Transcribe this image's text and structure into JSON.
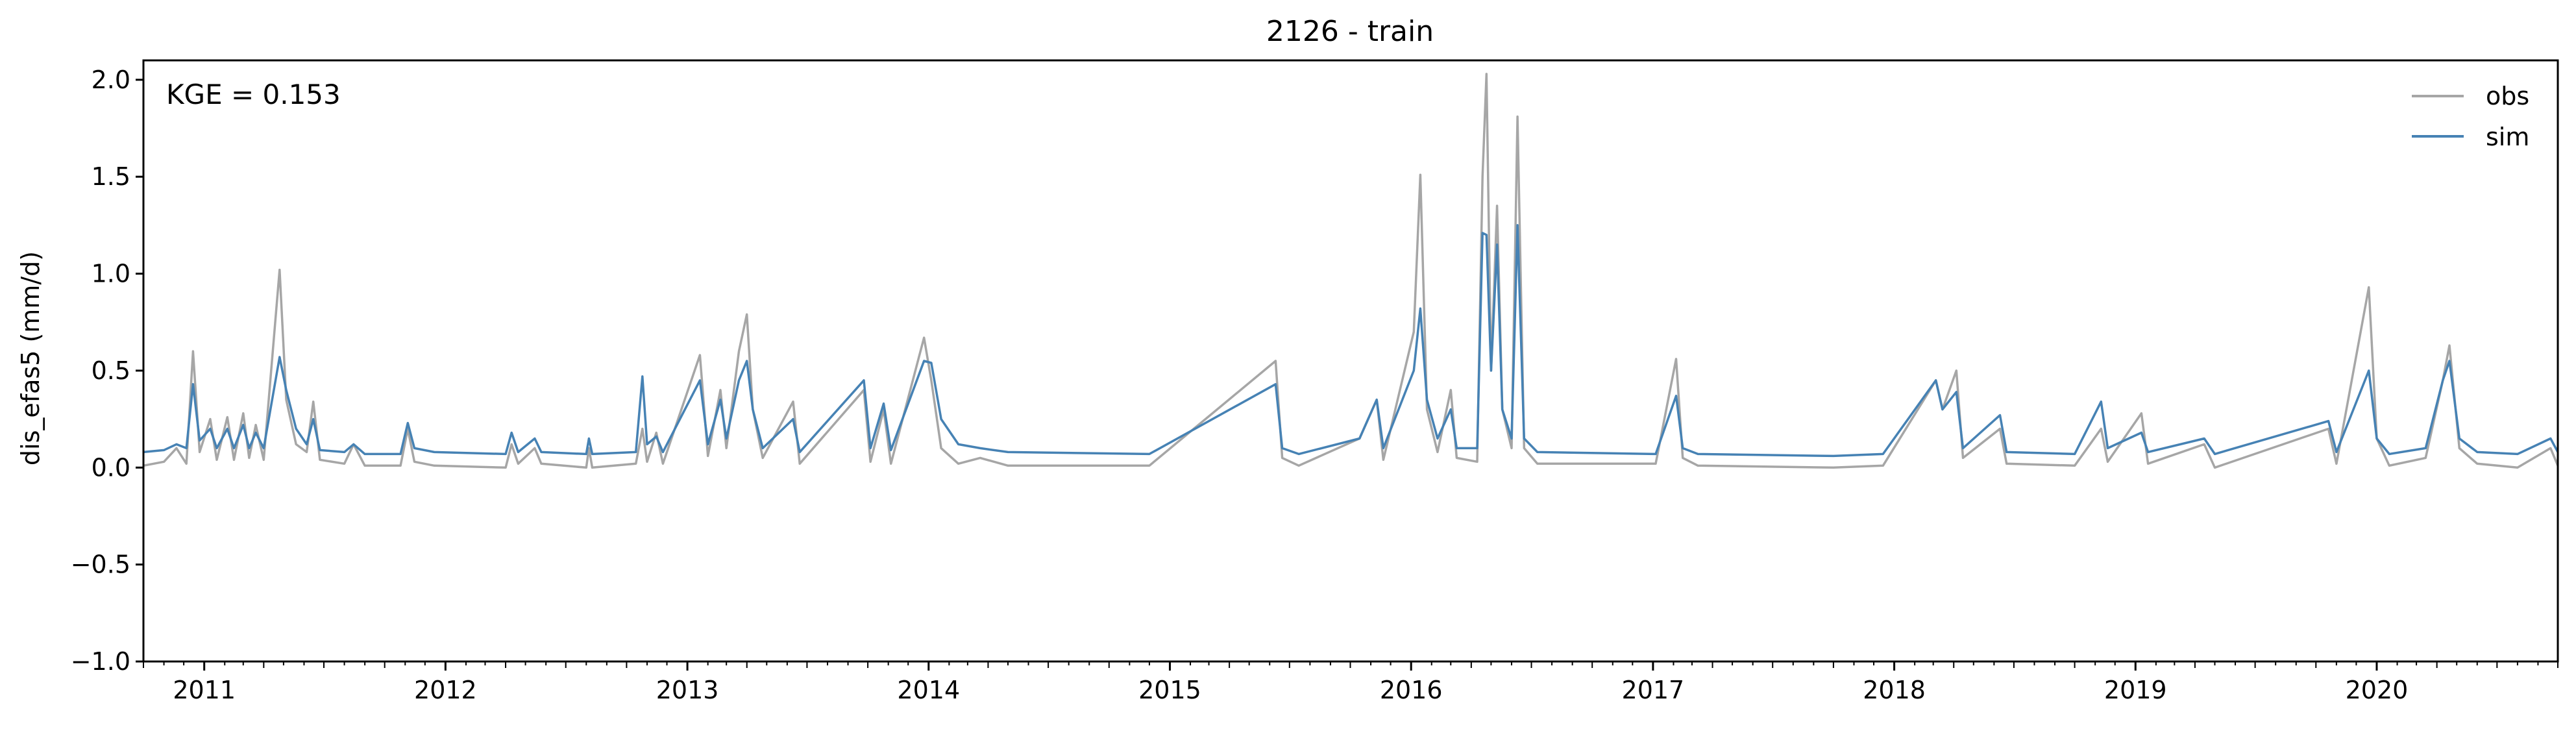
{
  "chart_data": {
    "type": "line",
    "title": "2126 - train",
    "xlabel": "",
    "ylabel": "dis_efas5 (mm/d)",
    "annotation": "KGE = 0.153",
    "xlim": [
      "2010-10-01",
      "2020-10-01"
    ],
    "ylim": [
      -1.0,
      2.1
    ],
    "yticks": [
      -1.0,
      -0.5,
      0.0,
      0.5,
      1.0,
      1.5,
      2.0
    ],
    "ytick_labels": [
      "−1.0",
      "−0.5",
      "0.0",
      "0.5",
      "1.0",
      "1.5",
      "2.0"
    ],
    "xtick_labels": [
      "2011",
      "2012",
      "2013",
      "2014",
      "2015",
      "2016",
      "2017",
      "2018",
      "2019",
      "2020"
    ],
    "grid": false,
    "legend_position": "top-right",
    "series": [
      {
        "name": "obs",
        "color": "#a6a6a6",
        "points": [
          [
            "2010-10-01",
            0.01
          ],
          [
            "2010-11-01",
            0.03
          ],
          [
            "2010-11-20",
            0.1
          ],
          [
            "2010-12-05",
            0.02
          ],
          [
            "2010-12-15",
            0.6
          ],
          [
            "2010-12-25",
            0.08
          ],
          [
            "2011-01-10",
            0.25
          ],
          [
            "2011-01-20",
            0.04
          ],
          [
            "2011-02-05",
            0.26
          ],
          [
            "2011-02-15",
            0.04
          ],
          [
            "2011-03-01",
            0.28
          ],
          [
            "2011-03-10",
            0.05
          ],
          [
            "2011-03-20",
            0.22
          ],
          [
            "2011-04-01",
            0.04
          ],
          [
            "2011-04-25",
            1.02
          ],
          [
            "2011-05-05",
            0.35
          ],
          [
            "2011-05-20",
            0.12
          ],
          [
            "2011-06-05",
            0.08
          ],
          [
            "2011-06-15",
            0.34
          ],
          [
            "2011-06-25",
            0.04
          ],
          [
            "2011-08-01",
            0.02
          ],
          [
            "2011-08-15",
            0.12
          ],
          [
            "2011-09-01",
            0.01
          ],
          [
            "2011-10-25",
            0.01
          ],
          [
            "2011-11-05",
            0.2
          ],
          [
            "2011-11-15",
            0.03
          ],
          [
            "2011-12-15",
            0.01
          ],
          [
            "2012-04-01",
            0.0
          ],
          [
            "2012-04-10",
            0.12
          ],
          [
            "2012-04-20",
            0.02
          ],
          [
            "2012-05-15",
            0.1
          ],
          [
            "2012-05-25",
            0.02
          ],
          [
            "2012-08-01",
            0.0
          ],
          [
            "2012-08-05",
            0.1
          ],
          [
            "2012-08-10",
            0.0
          ],
          [
            "2012-10-15",
            0.02
          ],
          [
            "2012-10-25",
            0.2
          ],
          [
            "2012-11-01",
            0.03
          ],
          [
            "2012-11-15",
            0.18
          ],
          [
            "2012-11-25",
            0.02
          ],
          [
            "2013-01-20",
            0.58
          ],
          [
            "2013-02-01",
            0.06
          ],
          [
            "2013-02-20",
            0.4
          ],
          [
            "2013-03-01",
            0.1
          ],
          [
            "2013-03-20",
            0.6
          ],
          [
            "2013-04-01",
            0.79
          ],
          [
            "2013-04-10",
            0.3
          ],
          [
            "2013-04-25",
            0.05
          ],
          [
            "2013-06-10",
            0.34
          ],
          [
            "2013-06-20",
            0.02
          ],
          [
            "2013-09-25",
            0.4
          ],
          [
            "2013-10-05",
            0.03
          ],
          [
            "2013-10-25",
            0.3
          ],
          [
            "2013-11-05",
            0.02
          ],
          [
            "2013-12-25",
            0.67
          ],
          [
            "2014-01-05",
            0.45
          ],
          [
            "2014-01-20",
            0.1
          ],
          [
            "2014-02-15",
            0.02
          ],
          [
            "2014-03-20",
            0.05
          ],
          [
            "2014-05-01",
            0.01
          ],
          [
            "2014-12-01",
            0.01
          ],
          [
            "2015-06-10",
            0.55
          ],
          [
            "2015-06-20",
            0.05
          ],
          [
            "2015-07-15",
            0.01
          ],
          [
            "2015-10-15",
            0.15
          ],
          [
            "2015-11-10",
            0.35
          ],
          [
            "2015-11-20",
            0.04
          ],
          [
            "2016-01-05",
            0.7
          ],
          [
            "2016-01-15",
            1.51
          ],
          [
            "2016-01-25",
            0.3
          ],
          [
            "2016-02-10",
            0.08
          ],
          [
            "2016-03-01",
            0.4
          ],
          [
            "2016-03-10",
            0.05
          ],
          [
            "2016-04-10",
            0.03
          ],
          [
            "2016-04-18",
            1.5
          ],
          [
            "2016-04-24",
            2.03
          ],
          [
            "2016-05-01",
            0.5
          ],
          [
            "2016-05-10",
            1.35
          ],
          [
            "2016-05-18",
            0.3
          ],
          [
            "2016-06-01",
            0.1
          ],
          [
            "2016-06-10",
            1.81
          ],
          [
            "2016-06-20",
            0.1
          ],
          [
            "2016-07-10",
            0.02
          ],
          [
            "2017-01-05",
            0.02
          ],
          [
            "2017-02-05",
            0.56
          ],
          [
            "2017-02-15",
            0.05
          ],
          [
            "2017-03-10",
            0.01
          ],
          [
            "2017-10-01",
            0.0
          ],
          [
            "2017-12-15",
            0.01
          ],
          [
            "2018-03-05",
            0.45
          ],
          [
            "2018-03-15",
            0.3
          ],
          [
            "2018-04-05",
            0.5
          ],
          [
            "2018-04-15",
            0.05
          ],
          [
            "2018-06-10",
            0.2
          ],
          [
            "2018-06-20",
            0.02
          ],
          [
            "2018-10-01",
            0.01
          ],
          [
            "2018-11-10",
            0.2
          ],
          [
            "2018-11-20",
            0.03
          ],
          [
            "2019-01-10",
            0.28
          ],
          [
            "2019-01-20",
            0.02
          ],
          [
            "2019-04-15",
            0.12
          ],
          [
            "2019-05-01",
            0.0
          ],
          [
            "2019-10-20",
            0.2
          ],
          [
            "2019-11-01",
            0.02
          ],
          [
            "2019-12-20",
            0.93
          ],
          [
            "2020-01-01",
            0.15
          ],
          [
            "2020-01-20",
            0.01
          ],
          [
            "2020-03-15",
            0.05
          ],
          [
            "2020-04-10",
            0.45
          ],
          [
            "2020-04-20",
            0.63
          ],
          [
            "2020-05-05",
            0.1
          ],
          [
            "2020-06-01",
            0.02
          ],
          [
            "2020-08-01",
            0.0
          ],
          [
            "2020-09-20",
            0.1
          ],
          [
            "2020-10-01",
            0.01
          ]
        ]
      },
      {
        "name": "sim",
        "color": "#4682b4",
        "points": [
          [
            "2010-10-01",
            0.08
          ],
          [
            "2010-11-01",
            0.09
          ],
          [
            "2010-11-20",
            0.12
          ],
          [
            "2010-12-05",
            0.1
          ],
          [
            "2010-12-15",
            0.43
          ],
          [
            "2010-12-25",
            0.14
          ],
          [
            "2011-01-10",
            0.2
          ],
          [
            "2011-01-20",
            0.1
          ],
          [
            "2011-02-05",
            0.2
          ],
          [
            "2011-02-15",
            0.1
          ],
          [
            "2011-03-01",
            0.22
          ],
          [
            "2011-03-10",
            0.1
          ],
          [
            "2011-03-20",
            0.18
          ],
          [
            "2011-04-01",
            0.1
          ],
          [
            "2011-04-25",
            0.57
          ],
          [
            "2011-05-05",
            0.4
          ],
          [
            "2011-05-20",
            0.2
          ],
          [
            "2011-06-05",
            0.12
          ],
          [
            "2011-06-15",
            0.25
          ],
          [
            "2011-06-25",
            0.09
          ],
          [
            "2011-08-01",
            0.08
          ],
          [
            "2011-08-15",
            0.12
          ],
          [
            "2011-09-01",
            0.07
          ],
          [
            "2011-10-25",
            0.07
          ],
          [
            "2011-11-05",
            0.23
          ],
          [
            "2011-11-15",
            0.1
          ],
          [
            "2011-12-15",
            0.08
          ],
          [
            "2012-04-01",
            0.07
          ],
          [
            "2012-04-10",
            0.18
          ],
          [
            "2012-04-20",
            0.08
          ],
          [
            "2012-05-15",
            0.15
          ],
          [
            "2012-05-25",
            0.08
          ],
          [
            "2012-08-01",
            0.07
          ],
          [
            "2012-08-05",
            0.15
          ],
          [
            "2012-08-10",
            0.07
          ],
          [
            "2012-10-15",
            0.08
          ],
          [
            "2012-10-25",
            0.47
          ],
          [
            "2012-11-01",
            0.12
          ],
          [
            "2012-11-15",
            0.16
          ],
          [
            "2012-11-25",
            0.08
          ],
          [
            "2013-01-20",
            0.45
          ],
          [
            "2013-02-01",
            0.12
          ],
          [
            "2013-02-20",
            0.35
          ],
          [
            "2013-03-01",
            0.15
          ],
          [
            "2013-03-20",
            0.45
          ],
          [
            "2013-04-01",
            0.55
          ],
          [
            "2013-04-10",
            0.3
          ],
          [
            "2013-04-25",
            0.1
          ],
          [
            "2013-06-10",
            0.25
          ],
          [
            "2013-06-20",
            0.08
          ],
          [
            "2013-09-25",
            0.45
          ],
          [
            "2013-10-05",
            0.1
          ],
          [
            "2013-10-25",
            0.33
          ],
          [
            "2013-11-05",
            0.09
          ],
          [
            "2013-12-25",
            0.55
          ],
          [
            "2014-01-05",
            0.54
          ],
          [
            "2014-01-20",
            0.25
          ],
          [
            "2014-02-15",
            0.12
          ],
          [
            "2014-03-20",
            0.1
          ],
          [
            "2014-05-01",
            0.08
          ],
          [
            "2014-12-01",
            0.07
          ],
          [
            "2015-06-10",
            0.43
          ],
          [
            "2015-06-20",
            0.1
          ],
          [
            "2015-07-15",
            0.07
          ],
          [
            "2015-10-15",
            0.15
          ],
          [
            "2015-11-10",
            0.35
          ],
          [
            "2015-11-20",
            0.1
          ],
          [
            "2016-01-05",
            0.5
          ],
          [
            "2016-01-15",
            0.82
          ],
          [
            "2016-01-25",
            0.35
          ],
          [
            "2016-02-10",
            0.15
          ],
          [
            "2016-03-01",
            0.3
          ],
          [
            "2016-03-10",
            0.1
          ],
          [
            "2016-04-10",
            0.1
          ],
          [
            "2016-04-18",
            1.21
          ],
          [
            "2016-04-24",
            1.2
          ],
          [
            "2016-05-01",
            0.5
          ],
          [
            "2016-05-10",
            1.15
          ],
          [
            "2016-05-18",
            0.3
          ],
          [
            "2016-06-01",
            0.15
          ],
          [
            "2016-06-10",
            1.25
          ],
          [
            "2016-06-20",
            0.15
          ],
          [
            "2016-07-10",
            0.08
          ],
          [
            "2017-01-05",
            0.07
          ],
          [
            "2017-02-05",
            0.37
          ],
          [
            "2017-02-15",
            0.1
          ],
          [
            "2017-03-10",
            0.07
          ],
          [
            "2017-10-01",
            0.06
          ],
          [
            "2017-12-15",
            0.07
          ],
          [
            "2018-03-05",
            0.45
          ],
          [
            "2018-03-15",
            0.3
          ],
          [
            "2018-04-05",
            0.39
          ],
          [
            "2018-04-15",
            0.1
          ],
          [
            "2018-06-10",
            0.27
          ],
          [
            "2018-06-20",
            0.08
          ],
          [
            "2018-10-01",
            0.07
          ],
          [
            "2018-11-10",
            0.34
          ],
          [
            "2018-11-20",
            0.1
          ],
          [
            "2019-01-10",
            0.18
          ],
          [
            "2019-01-20",
            0.08
          ],
          [
            "2019-04-15",
            0.15
          ],
          [
            "2019-05-01",
            0.07
          ],
          [
            "2019-10-20",
            0.24
          ],
          [
            "2019-11-01",
            0.08
          ],
          [
            "2019-12-20",
            0.5
          ],
          [
            "2020-01-01",
            0.15
          ],
          [
            "2020-01-20",
            0.07
          ],
          [
            "2020-03-15",
            0.1
          ],
          [
            "2020-04-10",
            0.45
          ],
          [
            "2020-04-20",
            0.55
          ],
          [
            "2020-05-05",
            0.15
          ],
          [
            "2020-06-01",
            0.08
          ],
          [
            "2020-08-01",
            0.07
          ],
          [
            "2020-09-20",
            0.15
          ],
          [
            "2020-10-01",
            0.08
          ]
        ]
      }
    ]
  }
}
